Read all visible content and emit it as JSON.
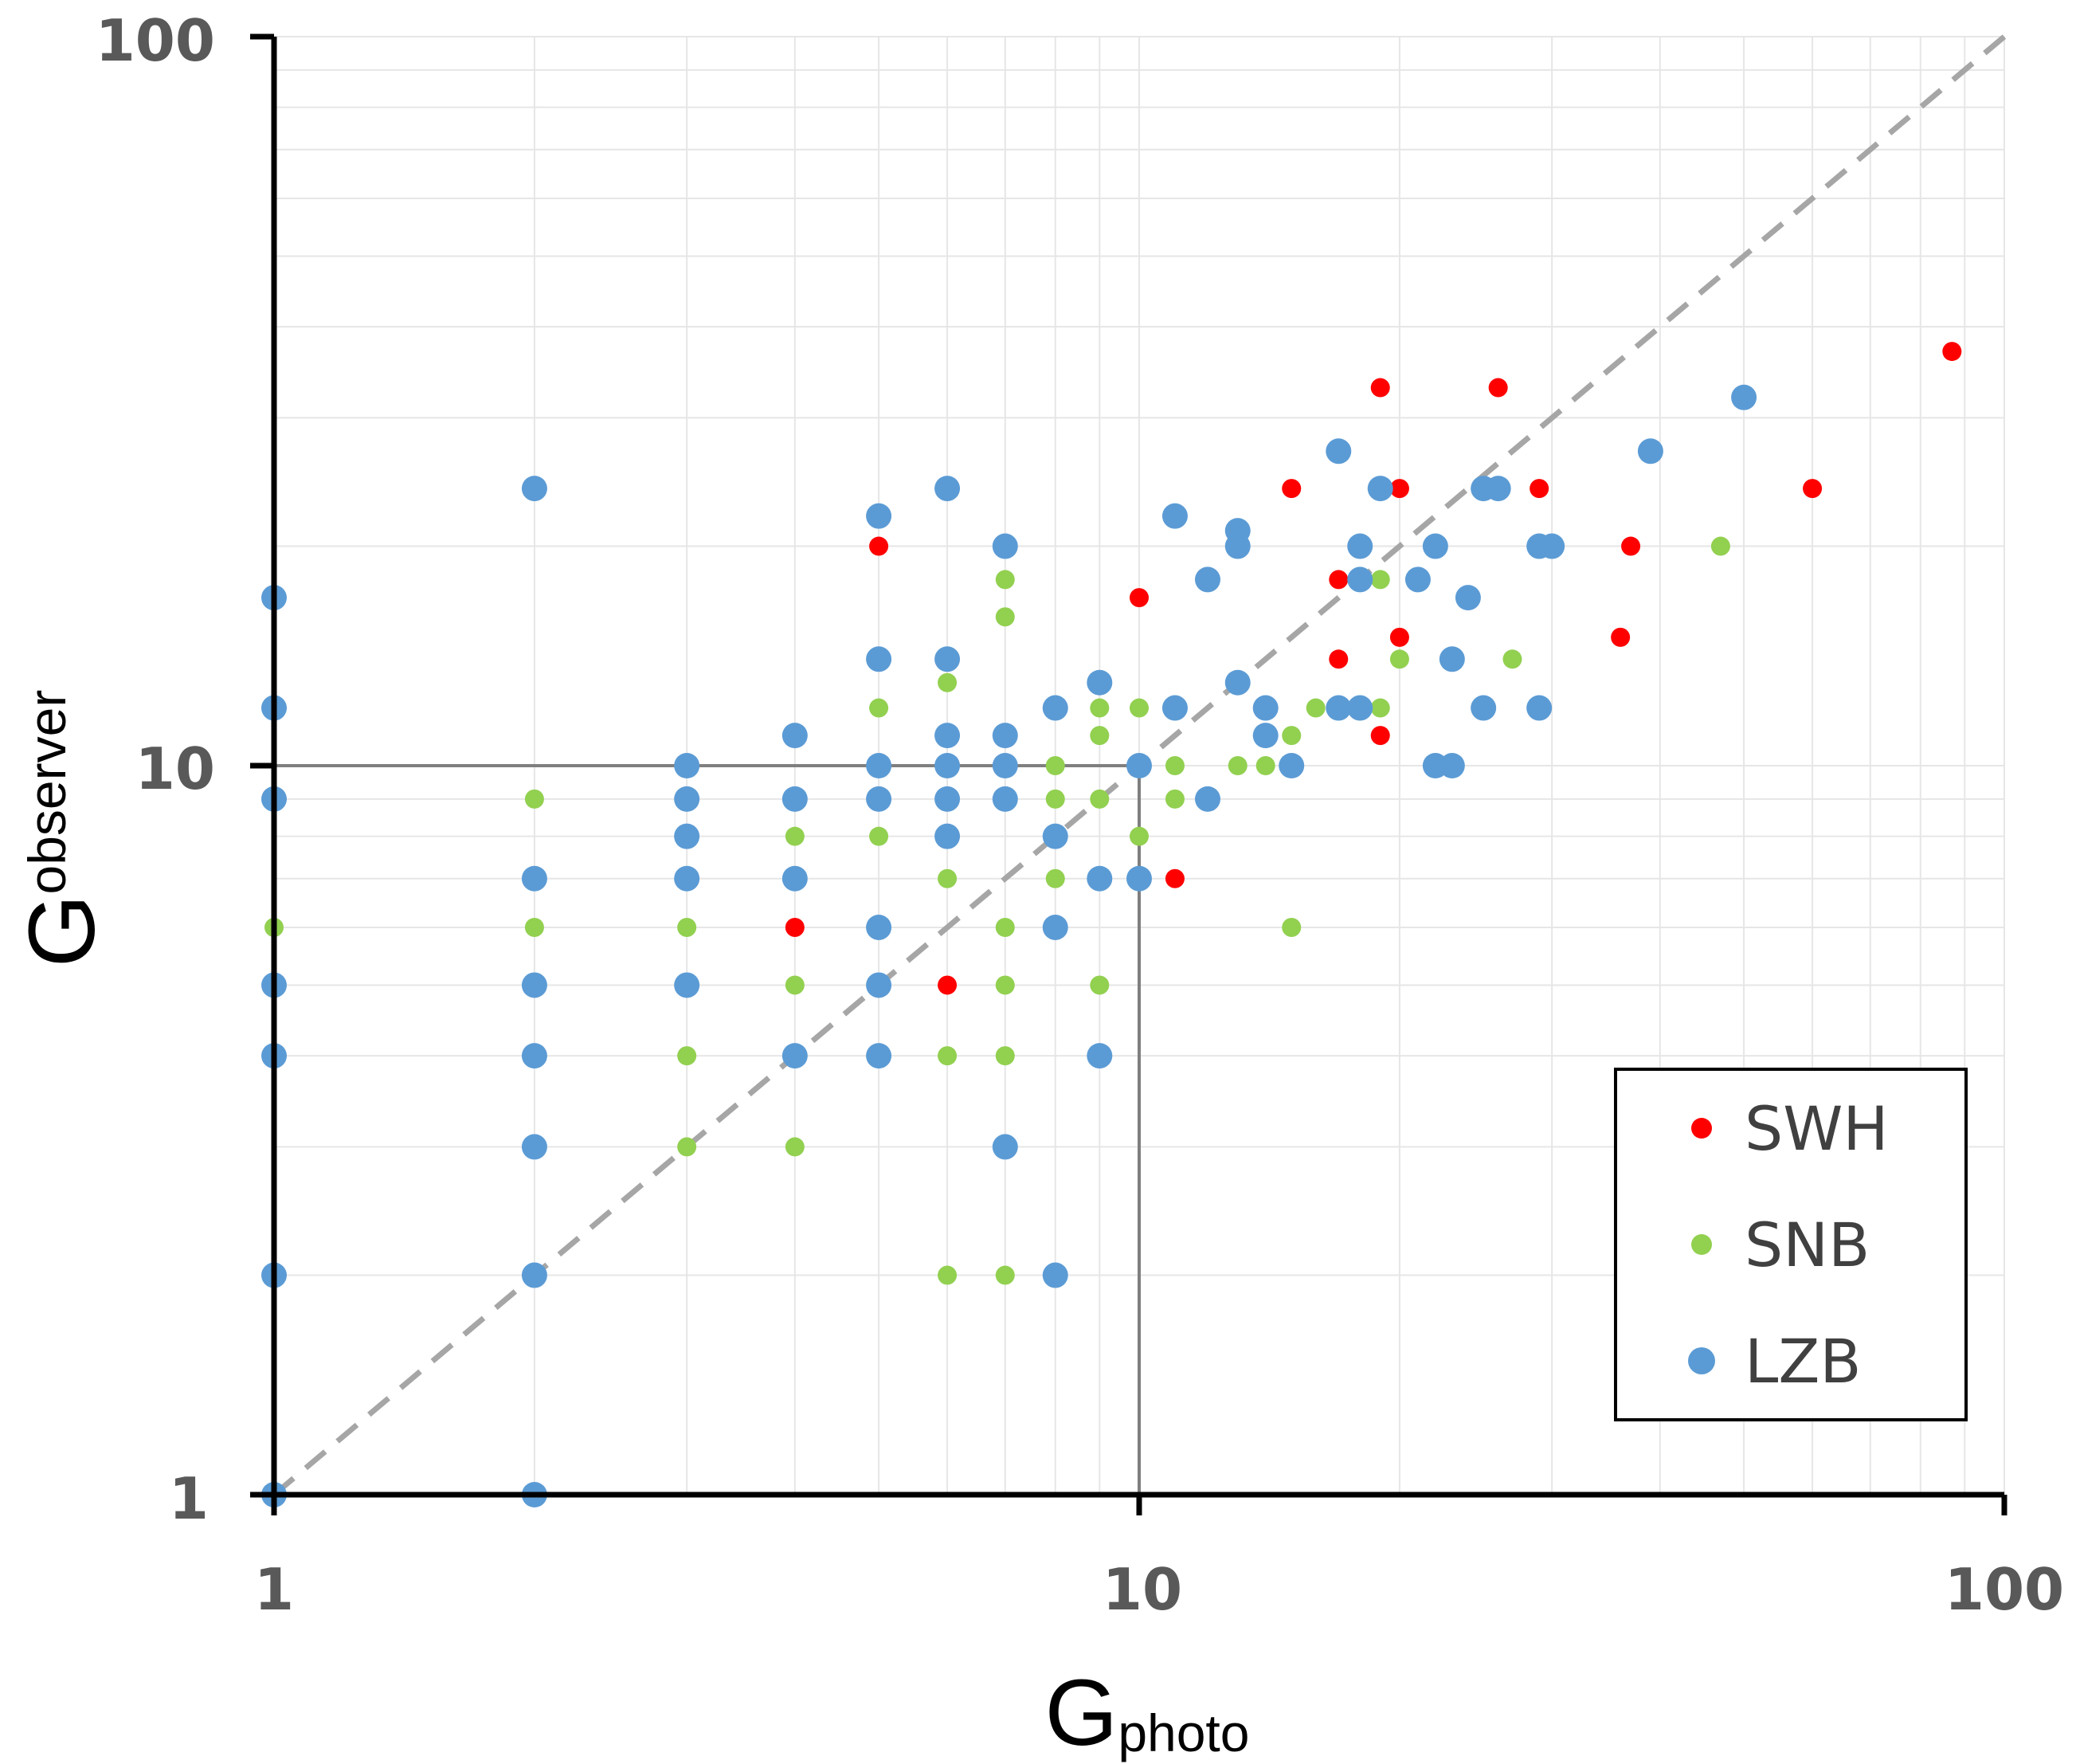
{
  "chart_data": {
    "type": "scatter",
    "title": "",
    "xlabel": {
      "main": "G",
      "sub": "photo"
    },
    "ylabel": {
      "main": "G",
      "sub": "observer"
    },
    "x_scale": "log",
    "y_scale": "log",
    "xlim": [
      1,
      100
    ],
    "ylim": [
      1,
      100
    ],
    "x_ticks": [
      "1",
      "10",
      "100"
    ],
    "y_ticks": [
      "1",
      "10",
      "100"
    ],
    "grid": true,
    "legend_position": "bottom-right",
    "reference_line": {
      "type": "identity",
      "style": "dashed",
      "color": "#a6a6a6"
    },
    "threshold_box": {
      "x": 10,
      "y": 10,
      "color": "#7f7f7f"
    },
    "series": [
      {
        "name": "SWH",
        "color": "#ff0000",
        "points": [
          [
            4,
            6
          ],
          [
            5,
            20
          ],
          [
            6,
            5
          ],
          [
            10,
            17
          ],
          [
            11,
            7
          ],
          [
            15,
            24
          ],
          [
            17,
            18
          ],
          [
            17,
            14
          ],
          [
            19,
            33
          ],
          [
            19,
            11
          ],
          [
            20,
            24
          ],
          [
            20,
            15
          ],
          [
            26,
            33
          ],
          [
            29,
            24
          ],
          [
            36,
            15
          ],
          [
            37,
            20
          ],
          [
            60,
            24
          ],
          [
            87,
            37
          ]
        ]
      },
      {
        "name": "SNB",
        "color": "#92d050",
        "points": [
          [
            1,
            6
          ],
          [
            2,
            9
          ],
          [
            2,
            6
          ],
          [
            3,
            6
          ],
          [
            3,
            4
          ],
          [
            3,
            3
          ],
          [
            4,
            8
          ],
          [
            4,
            5
          ],
          [
            4,
            3
          ],
          [
            5,
            12
          ],
          [
            5,
            8
          ],
          [
            6,
            13
          ],
          [
            6,
            7
          ],
          [
            6,
            4
          ],
          [
            6,
            2
          ],
          [
            7,
            18
          ],
          [
            7,
            16
          ],
          [
            7,
            6
          ],
          [
            7,
            5
          ],
          [
            7,
            4
          ],
          [
            7,
            2
          ],
          [
            8,
            10
          ],
          [
            8,
            9
          ],
          [
            8,
            7
          ],
          [
            9,
            12
          ],
          [
            9,
            11
          ],
          [
            9,
            9
          ],
          [
            9,
            5
          ],
          [
            10,
            12
          ],
          [
            10,
            10
          ],
          [
            10,
            8
          ],
          [
            11,
            12
          ],
          [
            11,
            10
          ],
          [
            11,
            9
          ],
          [
            13,
            10
          ],
          [
            14,
            12
          ],
          [
            14,
            10
          ],
          [
            15,
            11
          ],
          [
            15,
            6
          ],
          [
            16,
            12
          ],
          [
            18,
            12
          ],
          [
            19,
            18
          ],
          [
            19,
            12
          ],
          [
            20,
            14
          ],
          [
            27,
            14
          ],
          [
            47,
            20
          ]
        ]
      },
      {
        "name": "LZB",
        "color": "#5b9bd5",
        "points": [
          [
            1,
            17
          ],
          [
            1,
            12
          ],
          [
            1,
            9
          ],
          [
            1,
            5
          ],
          [
            1,
            4
          ],
          [
            1,
            2
          ],
          [
            1,
            1
          ],
          [
            2,
            24
          ],
          [
            2,
            7
          ],
          [
            2,
            5
          ],
          [
            2,
            4
          ],
          [
            2,
            3
          ],
          [
            2,
            2
          ],
          [
            2,
            1
          ],
          [
            3,
            10
          ],
          [
            3,
            9
          ],
          [
            3,
            8
          ],
          [
            3,
            7
          ],
          [
            3,
            5
          ],
          [
            4,
            11
          ],
          [
            4,
            9
          ],
          [
            4,
            7
          ],
          [
            4,
            4
          ],
          [
            5,
            22
          ],
          [
            5,
            14
          ],
          [
            5,
            10
          ],
          [
            5,
            9
          ],
          [
            5,
            6
          ],
          [
            5,
            5
          ],
          [
            5,
            4
          ],
          [
            6,
            24
          ],
          [
            6,
            14
          ],
          [
            6,
            11
          ],
          [
            6,
            10
          ],
          [
            6,
            9
          ],
          [
            6,
            8
          ],
          [
            7,
            20
          ],
          [
            7,
            11
          ],
          [
            7,
            10
          ],
          [
            7,
            9
          ],
          [
            7,
            3
          ],
          [
            8,
            12
          ],
          [
            8,
            8
          ],
          [
            8,
            6
          ],
          [
            8,
            2
          ],
          [
            9,
            13
          ],
          [
            9,
            7
          ],
          [
            9,
            4
          ],
          [
            10,
            10
          ],
          [
            10,
            7
          ],
          [
            11,
            22
          ],
          [
            11,
            12
          ],
          [
            12,
            18
          ],
          [
            12,
            9
          ],
          [
            13,
            21
          ],
          [
            13,
            20
          ],
          [
            13,
            13
          ],
          [
            14,
            12
          ],
          [
            14,
            11
          ],
          [
            15,
            10
          ],
          [
            17,
            27
          ],
          [
            17,
            12
          ],
          [
            18,
            20
          ],
          [
            18,
            18
          ],
          [
            18,
            12
          ],
          [
            19,
            24
          ],
          [
            21,
            18
          ],
          [
            22,
            20
          ],
          [
            22,
            10
          ],
          [
            23,
            10
          ],
          [
            23,
            14
          ],
          [
            24,
            17
          ],
          [
            25,
            24
          ],
          [
            25,
            12
          ],
          [
            26,
            24
          ],
          [
            29,
            20
          ],
          [
            29,
            12
          ],
          [
            30,
            20
          ],
          [
            39,
            27
          ],
          [
            50,
            32
          ]
        ]
      }
    ]
  }
}
